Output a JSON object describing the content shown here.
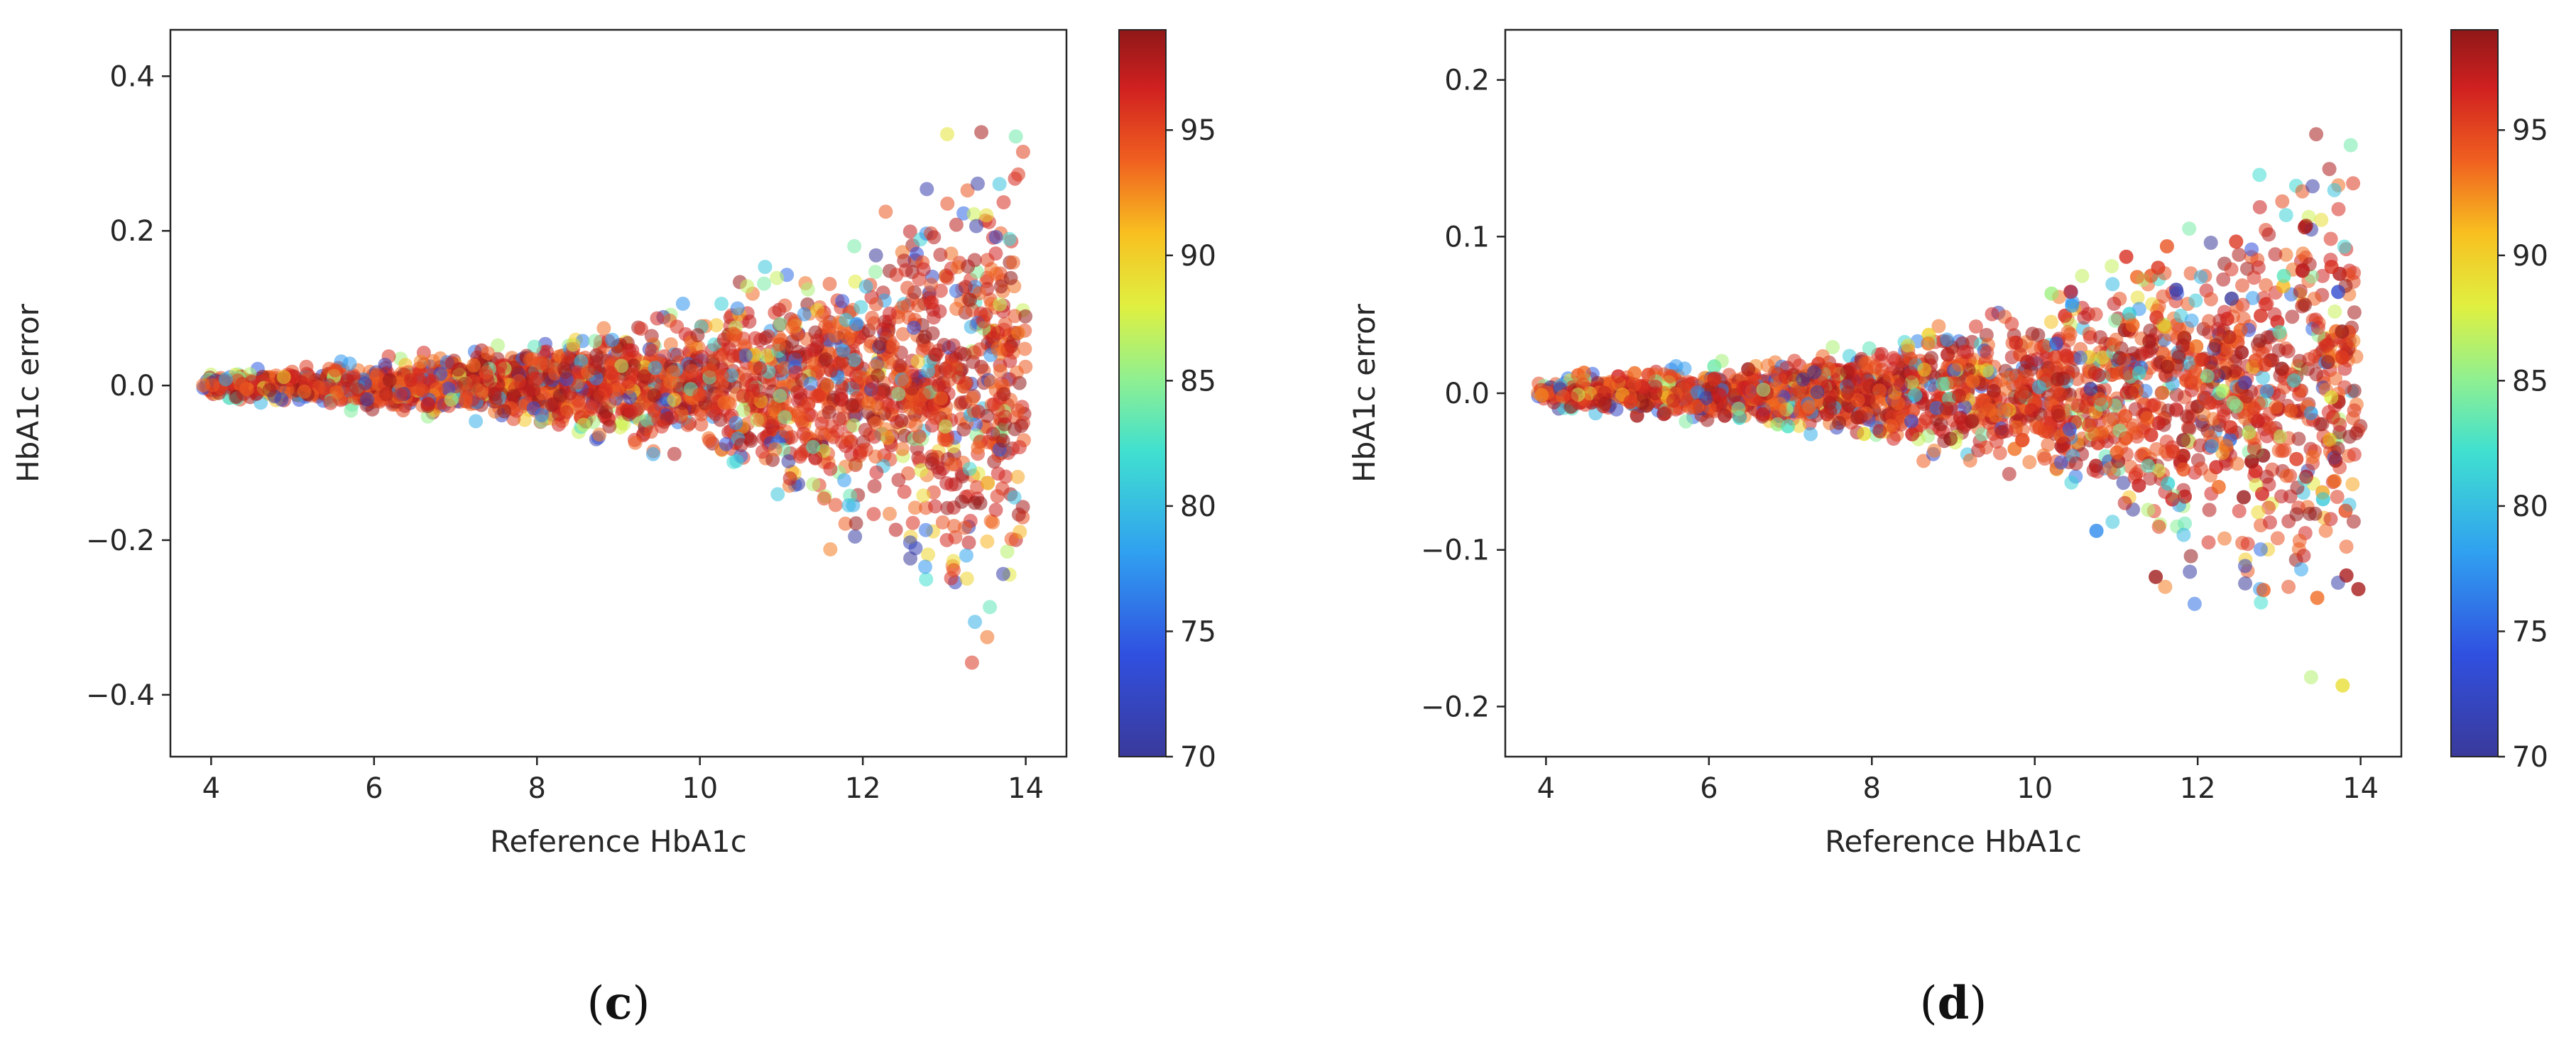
{
  "chart_data": [
    {
      "type": "scatter",
      "panel_label": "c",
      "title": "",
      "xlabel": "Reference HbA1c",
      "ylabel": "HbA1c error",
      "xlim": [
        3.5,
        14.5
      ],
      "ylim": [
        -0.48,
        0.46
      ],
      "xticks": [
        4,
        6,
        8,
        10,
        12,
        14
      ],
      "yticks": [
        -0.4,
        -0.2,
        0.0,
        0.2,
        0.4
      ],
      "ytick_labels": [
        "−0.4",
        "−0.2",
        "0.0",
        "0.2",
        "0.4"
      ],
      "x_range_of_points": [
        3.9,
        14.0
      ],
      "error_envelope": {
        "x": [
          4,
          6,
          8,
          10,
          12,
          14
        ],
        "max_abs_error": [
          0.02,
          0.04,
          0.07,
          0.12,
          0.24,
          0.43
        ]
      },
      "grid": false,
      "colorbar": {
        "colormap": "jet",
        "range": [
          70,
          99
        ],
        "ticks": [
          70,
          75,
          80,
          85,
          90,
          95
        ]
      }
    },
    {
      "type": "scatter",
      "panel_label": "d",
      "title": "",
      "xlabel": "Reference HbA1c",
      "ylabel": "HbA1c error",
      "xlim": [
        3.5,
        14.5
      ],
      "ylim": [
        -0.232,
        0.232
      ],
      "xticks": [
        4,
        6,
        8,
        10,
        12,
        14
      ],
      "yticks": [
        -0.2,
        -0.1,
        0.0,
        0.1,
        0.2
      ],
      "ytick_labels": [
        "−0.2",
        "−0.1",
        "0.0",
        "0.1",
        "0.2"
      ],
      "x_range_of_points": [
        3.9,
        14.0
      ],
      "error_envelope": {
        "x": [
          4,
          6,
          8,
          10,
          12,
          14
        ],
        "max_abs_error": [
          0.012,
          0.022,
          0.04,
          0.07,
          0.14,
          0.21
        ]
      },
      "grid": false,
      "colorbar": {
        "colormap": "jet",
        "range": [
          70,
          99
        ],
        "ticks": [
          70,
          75,
          80,
          85,
          90,
          95
        ]
      }
    }
  ]
}
